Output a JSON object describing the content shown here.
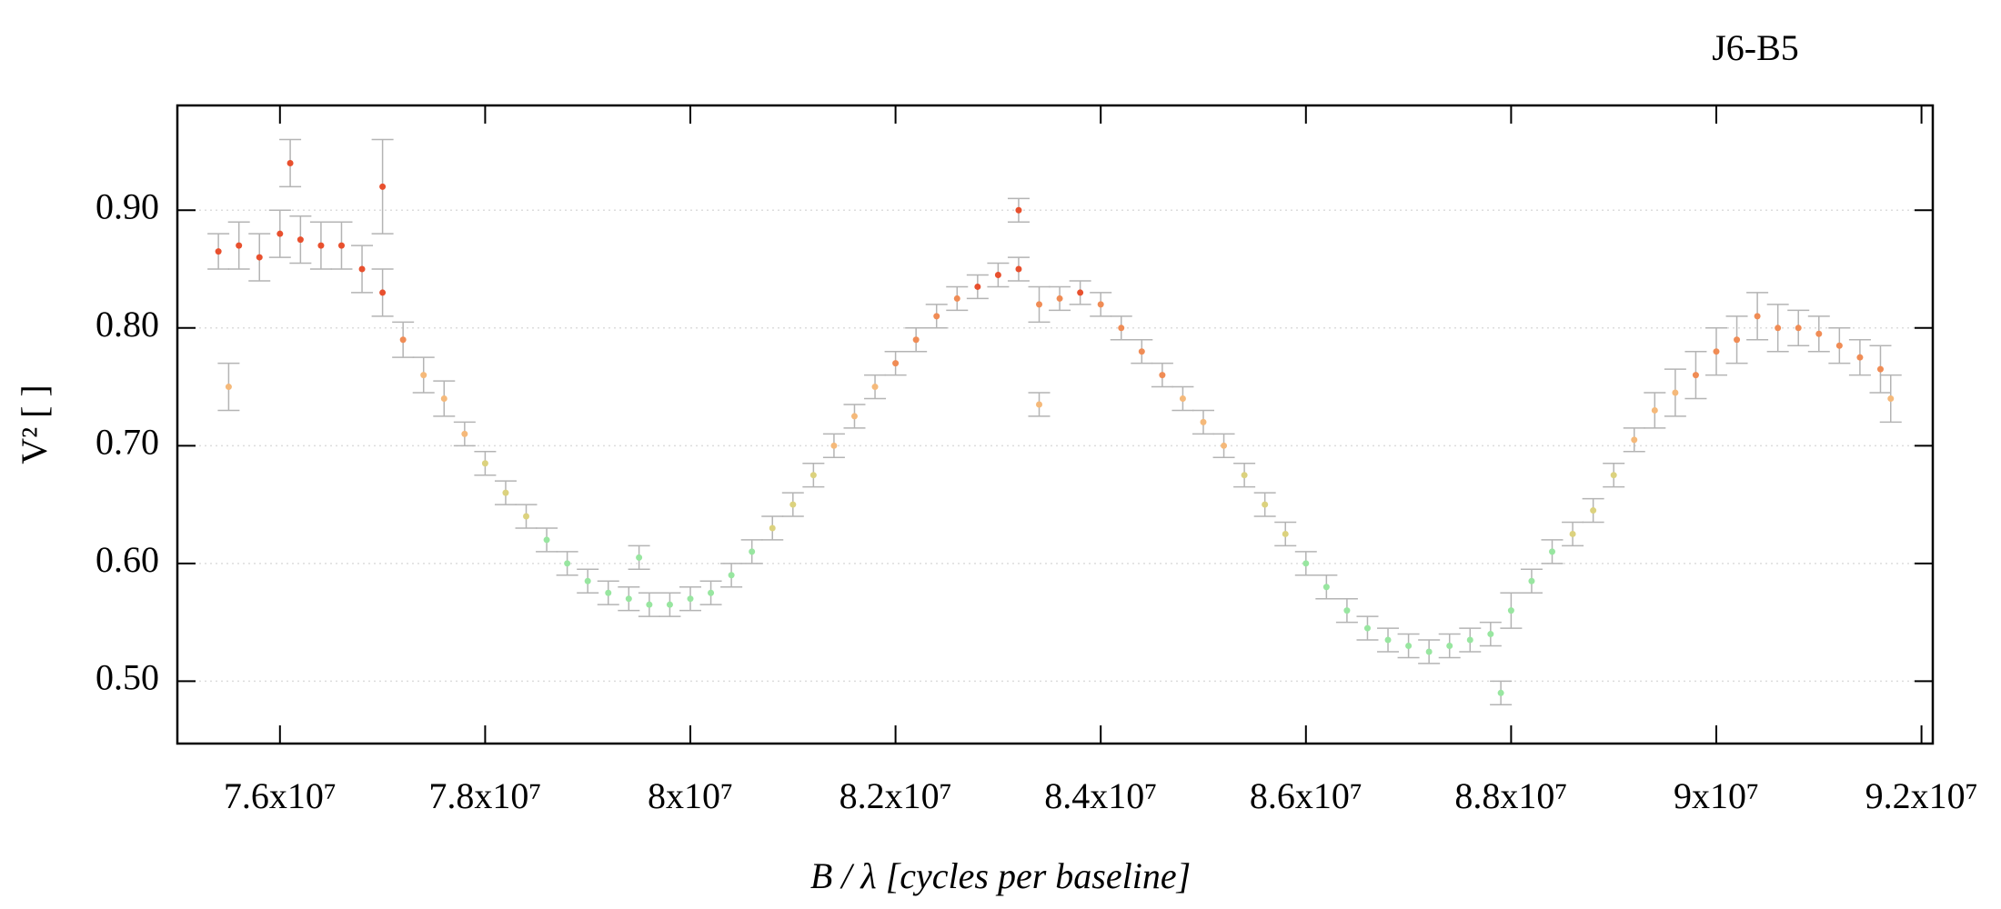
{
  "chart_data": {
    "type": "errorscatter",
    "title": "J6-B5",
    "xlabel": "B / λ [cycles per baseline]",
    "ylabel": "V² [ ]",
    "xlim": [
      75000000,
      92110000
    ],
    "ylim": [
      0.447,
      0.989
    ],
    "xticks": [
      {
        "value": 76000000,
        "label": "7.6x10⁷"
      },
      {
        "value": 78000000,
        "label": "7.8x10⁷"
      },
      {
        "value": 80000000,
        "label": "8x10⁷"
      },
      {
        "value": 82000000,
        "label": "8.2x10⁷"
      },
      {
        "value": 84000000,
        "label": "8.4x10⁷"
      },
      {
        "value": 86000000,
        "label": "8.6x10⁷"
      },
      {
        "value": 88000000,
        "label": "8.8x10⁷"
      },
      {
        "value": 90000000,
        "label": "9x10⁷"
      },
      {
        "value": 92000000,
        "label": "9.2x10⁷"
      }
    ],
    "yticks": [
      {
        "value": 0.5,
        "label": "0.50"
      },
      {
        "value": 0.6,
        "label": "0.60"
      },
      {
        "value": 0.7,
        "label": "0.70"
      },
      {
        "value": 0.8,
        "label": "0.80"
      },
      {
        "value": 0.9,
        "label": "0.90"
      }
    ],
    "grid": true,
    "error_color": "#b4b4b4",
    "x": [
      75400000,
      75500000,
      75600000,
      75800000,
      76000000,
      76100000,
      76200000,
      76400000,
      76600000,
      76800000,
      77000000,
      77000000,
      77200000,
      77400000,
      77600000,
      77800000,
      78000000,
      78200000,
      78400000,
      78600000,
      78800000,
      79000000,
      79200000,
      79400000,
      79500000,
      79600000,
      79800000,
      80000000,
      80200000,
      80400000,
      80600000,
      80800000,
      81000000,
      81200000,
      81400000,
      81600000,
      81800000,
      82000000,
      82200000,
      82400000,
      82600000,
      82800000,
      83000000,
      83200000,
      83200000,
      83400000,
      83400000,
      83600000,
      83800000,
      84000000,
      84200000,
      84400000,
      84600000,
      84800000,
      85000000,
      85200000,
      85400000,
      85600000,
      85800000,
      86000000,
      86200000,
      86400000,
      86600000,
      86800000,
      87000000,
      87200000,
      87400000,
      87600000,
      87800000,
      87900000,
      88000000,
      88200000,
      88400000,
      88600000,
      88800000,
      89000000,
      89200000,
      89400000,
      89600000,
      89800000,
      90000000,
      90200000,
      90400000,
      90600000,
      90800000,
      91000000,
      91200000,
      91400000,
      91600000,
      91700000
    ],
    "values": [
      0.865,
      0.75,
      0.87,
      0.86,
      0.88,
      0.94,
      0.875,
      0.87,
      0.87,
      0.85,
      0.92,
      0.83,
      0.79,
      0.76,
      0.74,
      0.71,
      0.685,
      0.66,
      0.64,
      0.62,
      0.6,
      0.585,
      0.575,
      0.57,
      0.605,
      0.565,
      0.565,
      0.57,
      0.575,
      0.59,
      0.61,
      0.63,
      0.65,
      0.675,
      0.7,
      0.725,
      0.75,
      0.77,
      0.79,
      0.81,
      0.825,
      0.835,
      0.845,
      0.85,
      0.9,
      0.82,
      0.735,
      0.825,
      0.83,
      0.82,
      0.8,
      0.78,
      0.76,
      0.74,
      0.72,
      0.7,
      0.675,
      0.65,
      0.625,
      0.6,
      0.58,
      0.56,
      0.545,
      0.535,
      0.53,
      0.525,
      0.53,
      0.535,
      0.54,
      0.49,
      0.56,
      0.585,
      0.61,
      0.625,
      0.645,
      0.675,
      0.705,
      0.73,
      0.745,
      0.76,
      0.78,
      0.79,
      0.81,
      0.8,
      0.8,
      0.795,
      0.785,
      0.775,
      0.765,
      0.74
    ],
    "errors": [
      0.015,
      0.02,
      0.02,
      0.02,
      0.02,
      0.02,
      0.02,
      0.02,
      0.02,
      0.02,
      0.04,
      0.02,
      0.015,
      0.015,
      0.015,
      0.01,
      0.01,
      0.01,
      0.01,
      0.01,
      0.01,
      0.01,
      0.01,
      0.01,
      0.01,
      0.01,
      0.01,
      0.01,
      0.01,
      0.01,
      0.01,
      0.01,
      0.01,
      0.01,
      0.01,
      0.01,
      0.01,
      0.01,
      0.01,
      0.01,
      0.01,
      0.01,
      0.01,
      0.01,
      0.01,
      0.015,
      0.01,
      0.01,
      0.01,
      0.01,
      0.01,
      0.01,
      0.01,
      0.01,
      0.01,
      0.01,
      0.01,
      0.01,
      0.01,
      0.01,
      0.01,
      0.01,
      0.01,
      0.01,
      0.01,
      0.01,
      0.01,
      0.01,
      0.01,
      0.01,
      0.015,
      0.01,
      0.01,
      0.01,
      0.01,
      0.01,
      0.01,
      0.015,
      0.02,
      0.02,
      0.02,
      0.02,
      0.02,
      0.02,
      0.015,
      0.015,
      0.015,
      0.015,
      0.02,
      0.02
    ],
    "colors": [
      "#e8502e",
      "#f5b97a",
      "#e8502e",
      "#e8502e",
      "#e8502e",
      "#e8502e",
      "#e8502e",
      "#e8502e",
      "#e8502e",
      "#e8502e",
      "#e8502e",
      "#e8502e",
      "#f08c55",
      "#f5b97a",
      "#f5b97a",
      "#f5b97a",
      "#dcd27e",
      "#dcd27e",
      "#dcd27e",
      "#98e6a0",
      "#98e6a0",
      "#98e6a0",
      "#98e6a0",
      "#98e6a0",
      "#98e6a0",
      "#98e6a0",
      "#98e6a0",
      "#98e6a0",
      "#98e6a0",
      "#98e6a0",
      "#98e6a0",
      "#dcd27e",
      "#dcd27e",
      "#dcd27e",
      "#f5b97a",
      "#f5b97a",
      "#f5b97a",
      "#f08c55",
      "#f08c55",
      "#f08c55",
      "#f08c55",
      "#e8502e",
      "#e8502e",
      "#e8502e",
      "#e8502e",
      "#f08c55",
      "#f5b97a",
      "#f08c55",
      "#e8502e",
      "#f08c55",
      "#f08c55",
      "#f08c55",
      "#f08c55",
      "#f5b97a",
      "#f5b97a",
      "#f5b97a",
      "#dcd27e",
      "#dcd27e",
      "#dcd27e",
      "#98e6a0",
      "#98e6a0",
      "#98e6a0",
      "#98e6a0",
      "#98e6a0",
      "#98e6a0",
      "#98e6a0",
      "#98e6a0",
      "#98e6a0",
      "#98e6a0",
      "#98e6a0",
      "#98e6a0",
      "#98e6a0",
      "#98e6a0",
      "#dcd27e",
      "#dcd27e",
      "#dcd27e",
      "#f5b97a",
      "#f5b97a",
      "#f5b97a",
      "#f08c55",
      "#f08c55",
      "#f08c55",
      "#f08c55",
      "#f08c55",
      "#f08c55",
      "#f08c55",
      "#f08c55",
      "#f08c55",
      "#f08c55",
      "#f5b97a"
    ]
  }
}
